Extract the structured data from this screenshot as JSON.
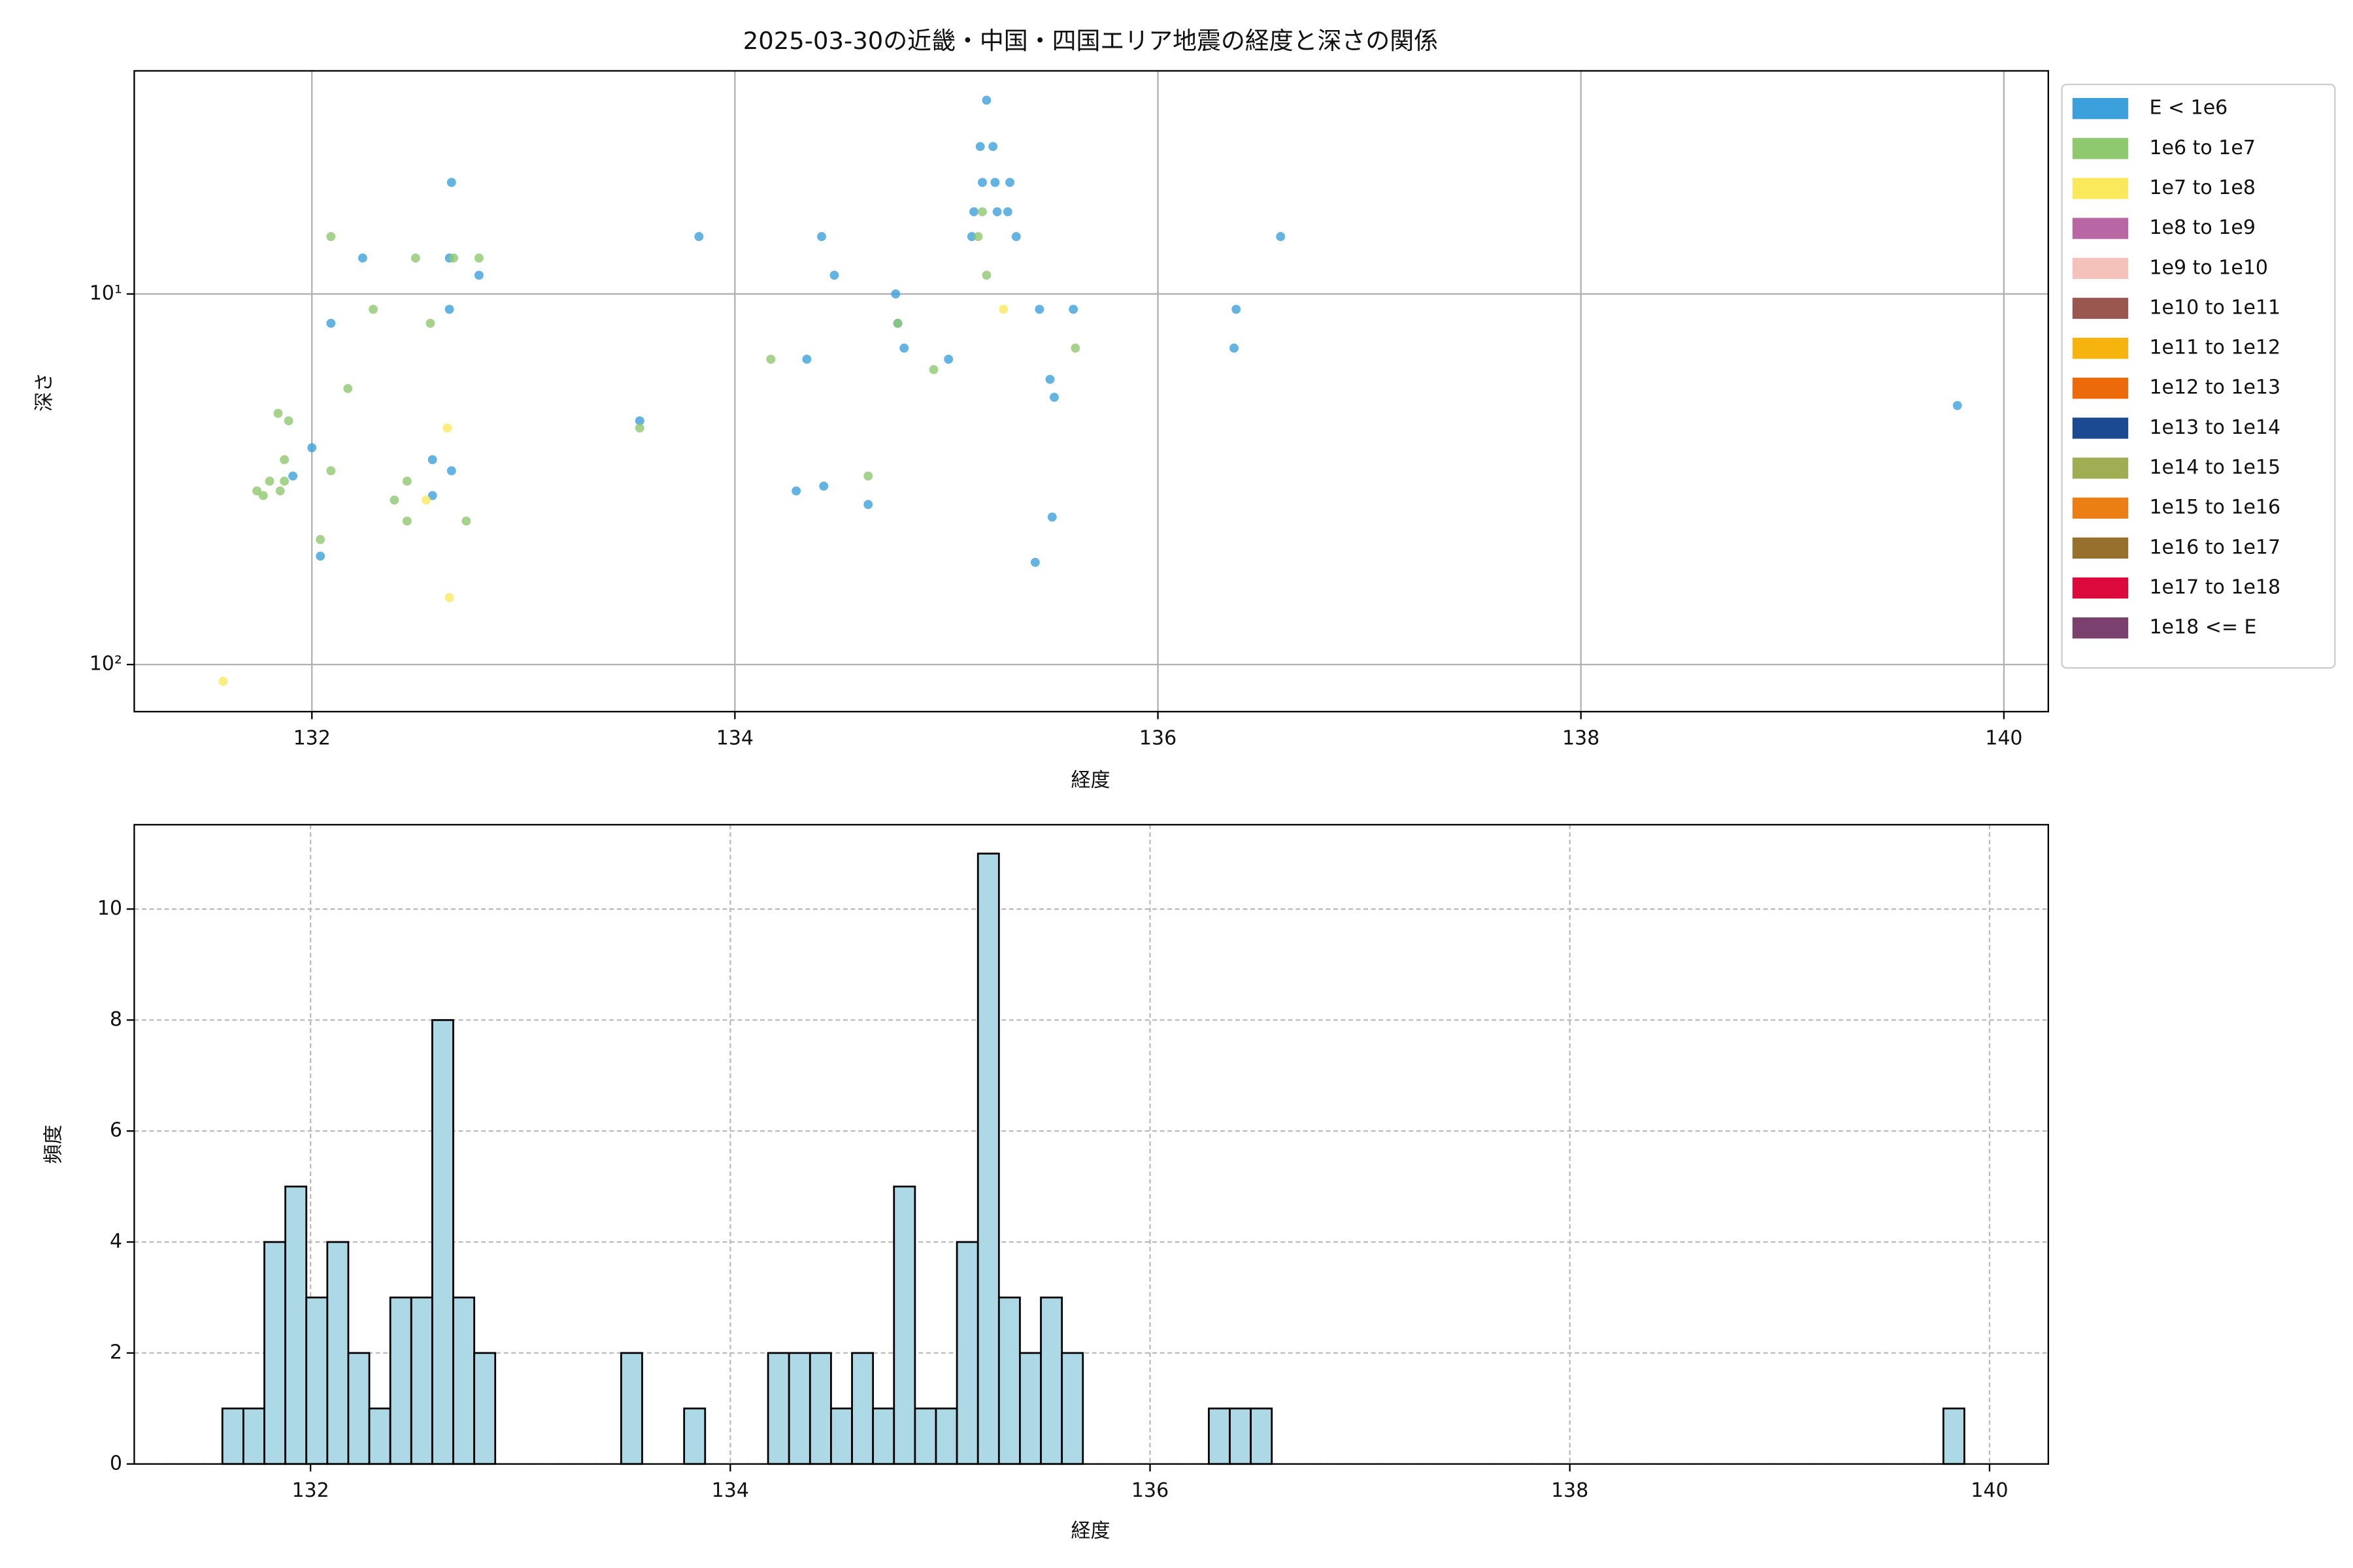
{
  "chart_data": [
    {
      "type": "scatter",
      "title": "2025-03-30の近畿・中国・四国エリア地震の経度と深さの関係",
      "xlabel": "経度",
      "ylabel": "深さ",
      "xlim": [
        131.16,
        140.21
      ],
      "ylim": [
        134,
        2.5
      ],
      "yscale": "log",
      "xticks": [
        132,
        134,
        136,
        138,
        140
      ],
      "yticks": [
        {
          "value": 10,
          "label": "10¹"
        },
        {
          "value": 100,
          "label": "10²"
        }
      ],
      "grid": true,
      "legend": "right",
      "series": [
        {
          "name": "E < 1e6",
          "color": "#3ca0dc",
          "x": [
            135.19,
            135.16,
            135.22,
            135.17,
            135.23,
            135.3,
            132.66,
            135.13,
            135.24,
            135.29,
            135.12,
            135.33,
            134.41,
            136.58,
            133.83,
            132.24,
            132.65,
            132.79,
            134.47,
            134.76,
            135.44,
            135.6,
            132.65,
            132.09,
            134.77,
            136.37,
            136.36,
            134.8,
            134.34,
            135.01,
            135.49,
            135.51,
            139.78,
            132.0,
            133.55,
            132.57,
            132.66,
            131.91,
            134.29,
            134.42,
            132.57,
            134.63,
            135.5,
            132.04,
            135.42
          ],
          "values": [
            3.0,
            4.0,
            4.0,
            5.0,
            5.0,
            5.0,
            5.0,
            6.0,
            6.0,
            6.0,
            7.0,
            7.0,
            7.0,
            7.0,
            7.0,
            8.0,
            8.0,
            8.9,
            8.9,
            10,
            11,
            11,
            11,
            12,
            12,
            11,
            14,
            14,
            15,
            15,
            17,
            19,
            20,
            26,
            22,
            28,
            30,
            31,
            34,
            33,
            35,
            37,
            40,
            51,
            53
          ]
        },
        {
          "name": "1e6 to 1e7",
          "color": "#8ec86f",
          "x": [
            132.09,
            132.49,
            132.79,
            132.67,
            135.17,
            135.15,
            135.19,
            132.29,
            132.56,
            134.77,
            132.17,
            134.17,
            134.94,
            135.61,
            131.84,
            131.89,
            133.55,
            131.87,
            132.09,
            131.8,
            131.74,
            131.77,
            131.85,
            131.87,
            134.63,
            132.45,
            132.39,
            132.04,
            132.45,
            132.73
          ],
          "values": [
            7,
            8,
            8,
            8,
            6,
            7,
            8.9,
            11,
            12,
            12,
            18,
            15,
            16,
            14,
            21,
            22,
            23,
            28,
            30,
            32,
            34,
            35,
            34,
            32,
            31,
            32,
            36,
            46,
            41,
            41
          ]
        },
        {
          "name": "1e7 to 1e8",
          "color": "#fbe95c",
          "x": [
            135.27,
            132.64,
            132.54,
            132.65,
            131.58
          ],
          "values": [
            11,
            23,
            36,
            66,
            111
          ]
        },
        {
          "name": "1e8 to 1e9",
          "color": "#b966a5",
          "x": [],
          "values": []
        },
        {
          "name": "1e9 to 1e10",
          "color": "#f5c1bb",
          "x": [],
          "values": []
        },
        {
          "name": "1e10 to 1e11",
          "color": "#995750",
          "x": [],
          "values": []
        },
        {
          "name": "1e11 to 1e12",
          "color": "#f8b40e",
          "x": [],
          "values": []
        },
        {
          "name": "1e12 to 1e13",
          "color": "#ed6a0b",
          "x": [],
          "values": []
        },
        {
          "name": "1e13 to 1e14",
          "color": "#1c4a92",
          "x": [],
          "values": []
        },
        {
          "name": "1e14 to 1e15",
          "color": "#a1ad52",
          "x": [],
          "values": []
        },
        {
          "name": "1e15 to 1e16",
          "color": "#ec7f14",
          "x": [],
          "values": []
        },
        {
          "name": "1e16 to 1e17",
          "color": "#97702e",
          "x": [],
          "values": []
        },
        {
          "name": "1e17 to 1e18",
          "color": "#dc0a3c",
          "x": [],
          "values": []
        },
        {
          "name": "1e18 <= E",
          "color": "#7a416e",
          "x": [],
          "values": []
        }
      ]
    },
    {
      "type": "histogram",
      "xlabel": "経度",
      "ylabel": "頻度",
      "color": "#add8e6",
      "edgecolor": "#000000",
      "xlim": [
        131.16,
        140.28
      ],
      "ylim": [
        0,
        11.52
      ],
      "xticks": [
        132,
        134,
        136,
        138,
        140
      ],
      "yticks": [
        0,
        2,
        4,
        6,
        8,
        10
      ],
      "grid": true,
      "grid_style": "dashed",
      "bins": [
        131.58,
        131.68,
        131.78,
        131.88,
        131.98,
        132.08,
        132.18,
        132.28,
        132.38,
        132.48,
        132.58,
        132.68,
        132.78,
        132.88,
        132.98,
        133.08,
        133.18,
        133.28,
        133.38,
        133.48,
        133.58,
        133.68,
        133.78,
        133.88,
        133.98,
        134.08,
        134.18,
        134.28,
        134.38,
        134.48,
        134.58,
        134.68,
        134.78,
        134.88,
        134.98,
        135.08,
        135.18,
        135.28,
        135.38,
        135.48,
        135.58,
        135.68,
        135.78,
        135.88,
        135.98,
        136.08,
        136.18,
        136.28,
        136.38,
        136.48,
        136.58,
        136.68,
        136.78,
        136.88,
        136.98,
        137.08,
        137.18,
        137.28,
        137.38,
        137.48,
        137.58,
        137.68,
        137.78,
        137.88,
        137.98,
        138.08,
        138.18,
        138.28,
        138.38,
        138.48,
        138.58,
        138.68,
        138.78,
        138.88,
        138.98,
        139.08,
        139.18,
        139.28,
        139.38,
        139.48,
        139.58,
        139.68,
        139.78,
        139.88
      ],
      "values": [
        1,
        1,
        4,
        5,
        3,
        4,
        2,
        1,
        3,
        3,
        8,
        3,
        2,
        0,
        0,
        0,
        0,
        0,
        0,
        2,
        0,
        0,
        1,
        0,
        0,
        0,
        2,
        2,
        2,
        1,
        2,
        1,
        5,
        1,
        1,
        4,
        11,
        3,
        2,
        3,
        2,
        0,
        0,
        0,
        0,
        0,
        0,
        1,
        1,
        1,
        0,
        0,
        0,
        0,
        0,
        0,
        0,
        0,
        0,
        0,
        0,
        0,
        0,
        0,
        0,
        0,
        0,
        0,
        0,
        0,
        0,
        0,
        0,
        0,
        0,
        0,
        0,
        0,
        0,
        0,
        0,
        0,
        1
      ]
    }
  ]
}
